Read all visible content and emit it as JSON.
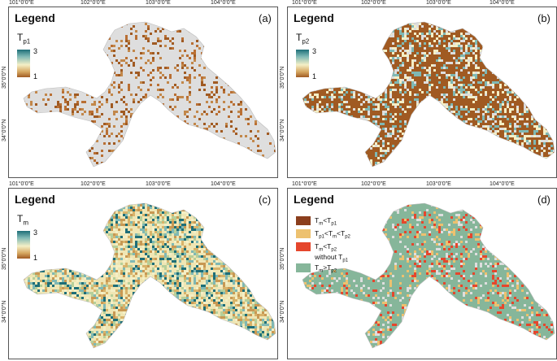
{
  "colors": {
    "region_gray": "#dedede",
    "tm_lt_tp1": "#8b3e1d",
    "tp1_lt_tm_lt_tp2": "#edc16f",
    "tm_lt_tp2_without_tp1": "#e5462c",
    "tm_gt_tp2": "#86b69a",
    "gradient_high": "#1e6e78",
    "gradient_mid": "#f4efc6",
    "gradient_low": "#a05a22"
  },
  "lon_labels": [
    "101°0'0\"E",
    "102°0'0\"E",
    "103°0'0\"E",
    "104°0'0\"E"
  ],
  "lat_labels": [
    "35°0'0\"N",
    "34°0'0\"N"
  ],
  "panels": {
    "a": {
      "letter": "(a)",
      "legend_title": "Legend",
      "var_main": "T",
      "var_sub": "p1",
      "cbar_max": "3",
      "cbar_min": "1",
      "fill": "sparse_brown"
    },
    "b": {
      "letter": "(b)",
      "legend_title": "Legend",
      "var_main": "T",
      "var_sub": "p2",
      "cbar_max": "3",
      "cbar_min": "1",
      "fill": "dense_brown"
    },
    "c": {
      "letter": "(c)",
      "legend_title": "Legend",
      "var_main": "T",
      "var_sub": "m",
      "cbar_max": "3",
      "cbar_min": "1",
      "fill": "mixed_gradient"
    },
    "d": {
      "letter": "(d)",
      "legend_title": "Legend",
      "fill": "classified",
      "items": [
        {
          "parts": [
            "T",
            "m",
            "<T",
            "p1"
          ],
          "color_key": "tm_lt_tp1"
        },
        {
          "parts": [
            "T",
            "p1",
            "<T",
            "m",
            "<T",
            "p2"
          ],
          "color_key": "tp1_lt_tm_lt_tp2"
        },
        {
          "parts": [
            "T",
            "m",
            "<T",
            "p2"
          ],
          "extra": "without T",
          "extra_sub": "p1",
          "color_key": "tm_lt_tp2_without_tp1"
        },
        {
          "parts": [
            "T",
            "m",
            ">T",
            "p2"
          ],
          "color_key": "tm_gt_tp2"
        }
      ]
    }
  }
}
